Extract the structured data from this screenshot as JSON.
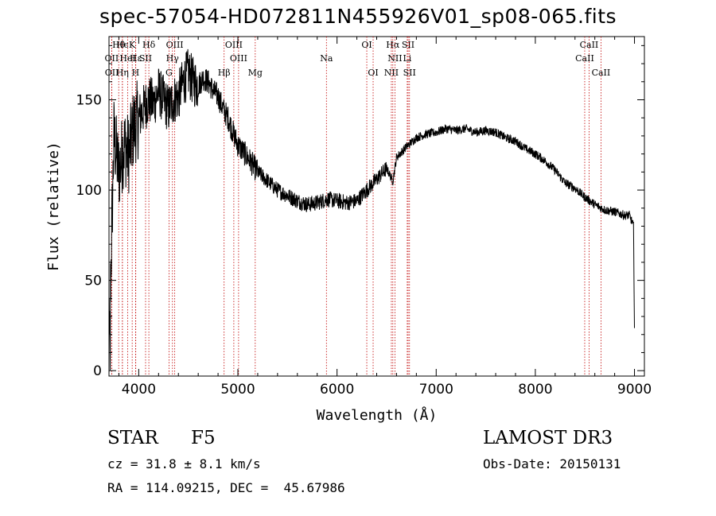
{
  "title": "spec-57054-HD072811N455926V01_sp08-065.fits",
  "info": {
    "object_class": "STAR",
    "subclass": "F5",
    "survey": "LAMOST DR3",
    "cz": "cz = 31.8 ± 8.1 km/s",
    "obs_date": "Obs-Date: 20150131",
    "coords": "RA = 114.09215, DEC =  45.67986"
  },
  "chart_data": {
    "type": "line",
    "title": "spec-57054-HD072811N455926V01_sp08-065.fits",
    "xlabel": "Wavelength (Å)",
    "ylabel": "Flux (relative)",
    "xlim": [
      3700,
      9100
    ],
    "ylim": [
      -3,
      185
    ],
    "xticks": [
      4000,
      5000,
      6000,
      7000,
      8000,
      9000
    ],
    "yticks": [
      0,
      50,
      100,
      150
    ],
    "series": [
      {
        "name": "flux",
        "x": [
          3700,
          3750,
          3800,
          3850,
          3900,
          3950,
          4000,
          4050,
          4100,
          4150,
          4200,
          4250,
          4300,
          4350,
          4400,
          4450,
          4500,
          4550,
          4600,
          4650,
          4700,
          4750,
          4800,
          4850,
          4900,
          4950,
          5000,
          5100,
          5200,
          5300,
          5400,
          5500,
          5600,
          5700,
          5800,
          5900,
          6000,
          6100,
          6200,
          6300,
          6400,
          6500,
          6563,
          6600,
          6700,
          6800,
          6900,
          7000,
          7100,
          7200,
          7300,
          7400,
          7500,
          7600,
          7700,
          7800,
          7900,
          8000,
          8100,
          8200,
          8300,
          8400,
          8500,
          8600,
          8700,
          8800,
          8900,
          8950,
          8990,
          9000
        ],
        "y": [
          10,
          130,
          110,
          125,
          120,
          135,
          140,
          145,
          150,
          148,
          155,
          150,
          145,
          150,
          152,
          160,
          165,
          160,
          158,
          162,
          160,
          155,
          152,
          145,
          140,
          132,
          125,
          118,
          110,
          105,
          100,
          97,
          94,
          92,
          93,
          95,
          94,
          93,
          94,
          100,
          106,
          112,
          105,
          118,
          124,
          129,
          131,
          132,
          134,
          133,
          134,
          132,
          133,
          132,
          129,
          127,
          123,
          120,
          116,
          111,
          104,
          101,
          96,
          92,
          89,
          88,
          86,
          86,
          80,
          25
        ]
      }
    ],
    "line_markers": [
      {
        "label": "Hθ",
        "wave": 3798,
        "row": 0
      },
      {
        "label": "Hϵ",
        "wave": 3835,
        "row": 0
      },
      {
        "label": "K",
        "wave": 3934,
        "row": 0
      },
      {
        "label": "Hε",
        "wave": 3970,
        "row": 1
      },
      {
        "label": "Hδ",
        "wave": 4102,
        "row": 0
      },
      {
        "label": "OIII",
        "wave": 4363,
        "row": 0
      },
      {
        "label": "OIII",
        "wave": 4959,
        "row": 0
      },
      {
        "label": "OI",
        "wave": 6300,
        "row": 0
      },
      {
        "label": "Hα",
        "wave": 6563,
        "row": 0
      },
      {
        "label": "SII",
        "wave": 6717,
        "row": 0
      },
      {
        "label": "CaII",
        "wave": 8542,
        "row": 0
      },
      {
        "label": "OII",
        "wave": 3727,
        "row": 1
      },
      {
        "label": "HeI",
        "wave": 3889,
        "row": 1
      },
      {
        "label": "SII",
        "wave": 4069,
        "row": 1
      },
      {
        "label": "Hγ",
        "wave": 4340,
        "row": 1
      },
      {
        "label": "OIII",
        "wave": 5007,
        "row": 1
      },
      {
        "label": "Na",
        "wave": 5893,
        "row": 1
      },
      {
        "label": "NII",
        "wave": 6584,
        "row": 1
      },
      {
        "label": "Li",
        "wave": 6708,
        "row": 1
      },
      {
        "label": "CaII",
        "wave": 8498,
        "row": 1
      },
      {
        "label": "OII",
        "wave": 3729,
        "row": 2
      },
      {
        "label": "Hη",
        "wave": 3835,
        "row": 2
      },
      {
        "label": "H",
        "wave": 3968,
        "row": 2
      },
      {
        "label": "G",
        "wave": 4305,
        "row": 2
      },
      {
        "label": "Hβ",
        "wave": 4861,
        "row": 2
      },
      {
        "label": "Mg",
        "wave": 5175,
        "row": 2
      },
      {
        "label": "OI",
        "wave": 6364,
        "row": 2
      },
      {
        "label": "NII",
        "wave": 6548,
        "row": 2
      },
      {
        "label": "SII",
        "wave": 6731,
        "row": 2
      },
      {
        "label": "CaII",
        "wave": 8662,
        "row": 2
      }
    ]
  }
}
